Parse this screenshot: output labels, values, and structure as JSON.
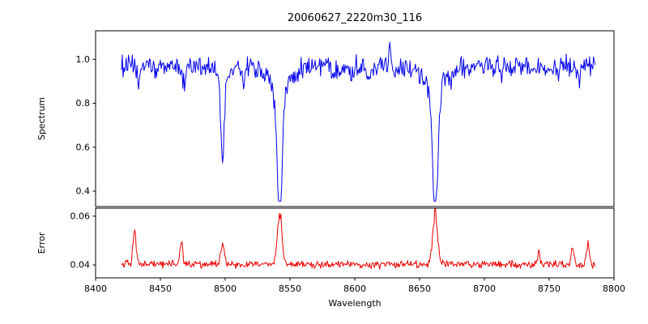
{
  "chart_data": {
    "type": "line",
    "title": "20060627_2220m30_116",
    "xlabel": "Wavelength",
    "xlim": [
      8400,
      8800
    ],
    "x_ticks": [
      8400,
      8450,
      8500,
      8550,
      8600,
      8650,
      8700,
      8750,
      8800
    ],
    "x_data_range": [
      8420,
      8786
    ],
    "grid": false,
    "legend": "none",
    "panels": [
      {
        "id": "spectrum",
        "ylabel": "Spectrum",
        "ylim": [
          0.33,
          1.13
        ],
        "y_ticks": [
          0.4,
          0.6,
          0.8,
          1.0
        ],
        "y_tick_labels": [
          "0.4",
          "0.6",
          "0.8",
          "1.0"
        ],
        "line_color": "#0000ee",
        "baseline": 0.97,
        "noise_amplitude": 0.045,
        "absorption_lines": [
          {
            "center": 8498,
            "depth": 0.36,
            "sigma": 1.3,
            "min_flux": 0.61
          },
          {
            "center": 8542,
            "depth": 0.585,
            "sigma": 2.0,
            "min_flux": 0.38
          },
          {
            "center": 8662,
            "depth": 0.585,
            "sigma": 2.0,
            "min_flux": 0.38
          }
        ],
        "weak_lines": [
          {
            "center": 8433,
            "depth": 0.07,
            "sigma": 1.2
          },
          {
            "center": 8447,
            "depth": 0.05,
            "sigma": 1.0
          },
          {
            "center": 8468,
            "depth": 0.08,
            "sigma": 1.2
          },
          {
            "center": 8514,
            "depth": 0.07,
            "sigma": 1.2
          },
          {
            "center": 8583,
            "depth": 0.05,
            "sigma": 1.0
          },
          {
            "center": 8598,
            "depth": 0.05,
            "sigma": 1.0
          },
          {
            "center": 8611,
            "depth": 0.05,
            "sigma": 1.0
          },
          {
            "center": 8674,
            "depth": 0.06,
            "sigma": 1.2
          },
          {
            "center": 8688,
            "depth": 0.06,
            "sigma": 1.2
          },
          {
            "center": 8713,
            "depth": 0.05,
            "sigma": 1.0
          },
          {
            "center": 8736,
            "depth": 0.05,
            "sigma": 1.0
          },
          {
            "center": 8757,
            "depth": 0.05,
            "sigma": 1.0
          },
          {
            "center": 8773,
            "depth": 0.08,
            "sigma": 1.2
          }
        ],
        "emission_spikes": [
          {
            "center": 8627,
            "amp": 0.08,
            "sigma": 0.8
          }
        ]
      },
      {
        "id": "error",
        "ylabel": "Error",
        "ylim": [
          0.0347,
          0.0633
        ],
        "y_ticks": [
          0.04,
          0.06
        ],
        "y_tick_labels": [
          "0.04",
          "0.06"
        ],
        "line_color": "#ee0000",
        "baseline": 0.0402,
        "noise_amplitude": 0.0015,
        "spikes": [
          {
            "center": 8430,
            "amp": 0.0145,
            "sigma": 1.2
          },
          {
            "center": 8466,
            "amp": 0.0105,
            "sigma": 1.0
          },
          {
            "center": 8498,
            "amp": 0.0085,
            "sigma": 1.4
          },
          {
            "center": 8542,
            "amp": 0.021,
            "sigma": 1.8
          },
          {
            "center": 8662,
            "amp": 0.023,
            "sigma": 1.8
          },
          {
            "center": 8742,
            "amp": 0.0045,
            "sigma": 1.0
          },
          {
            "center": 8768,
            "amp": 0.0075,
            "sigma": 1.2
          },
          {
            "center": 8780,
            "amp": 0.0095,
            "sigma": 1.0
          }
        ]
      }
    ]
  }
}
